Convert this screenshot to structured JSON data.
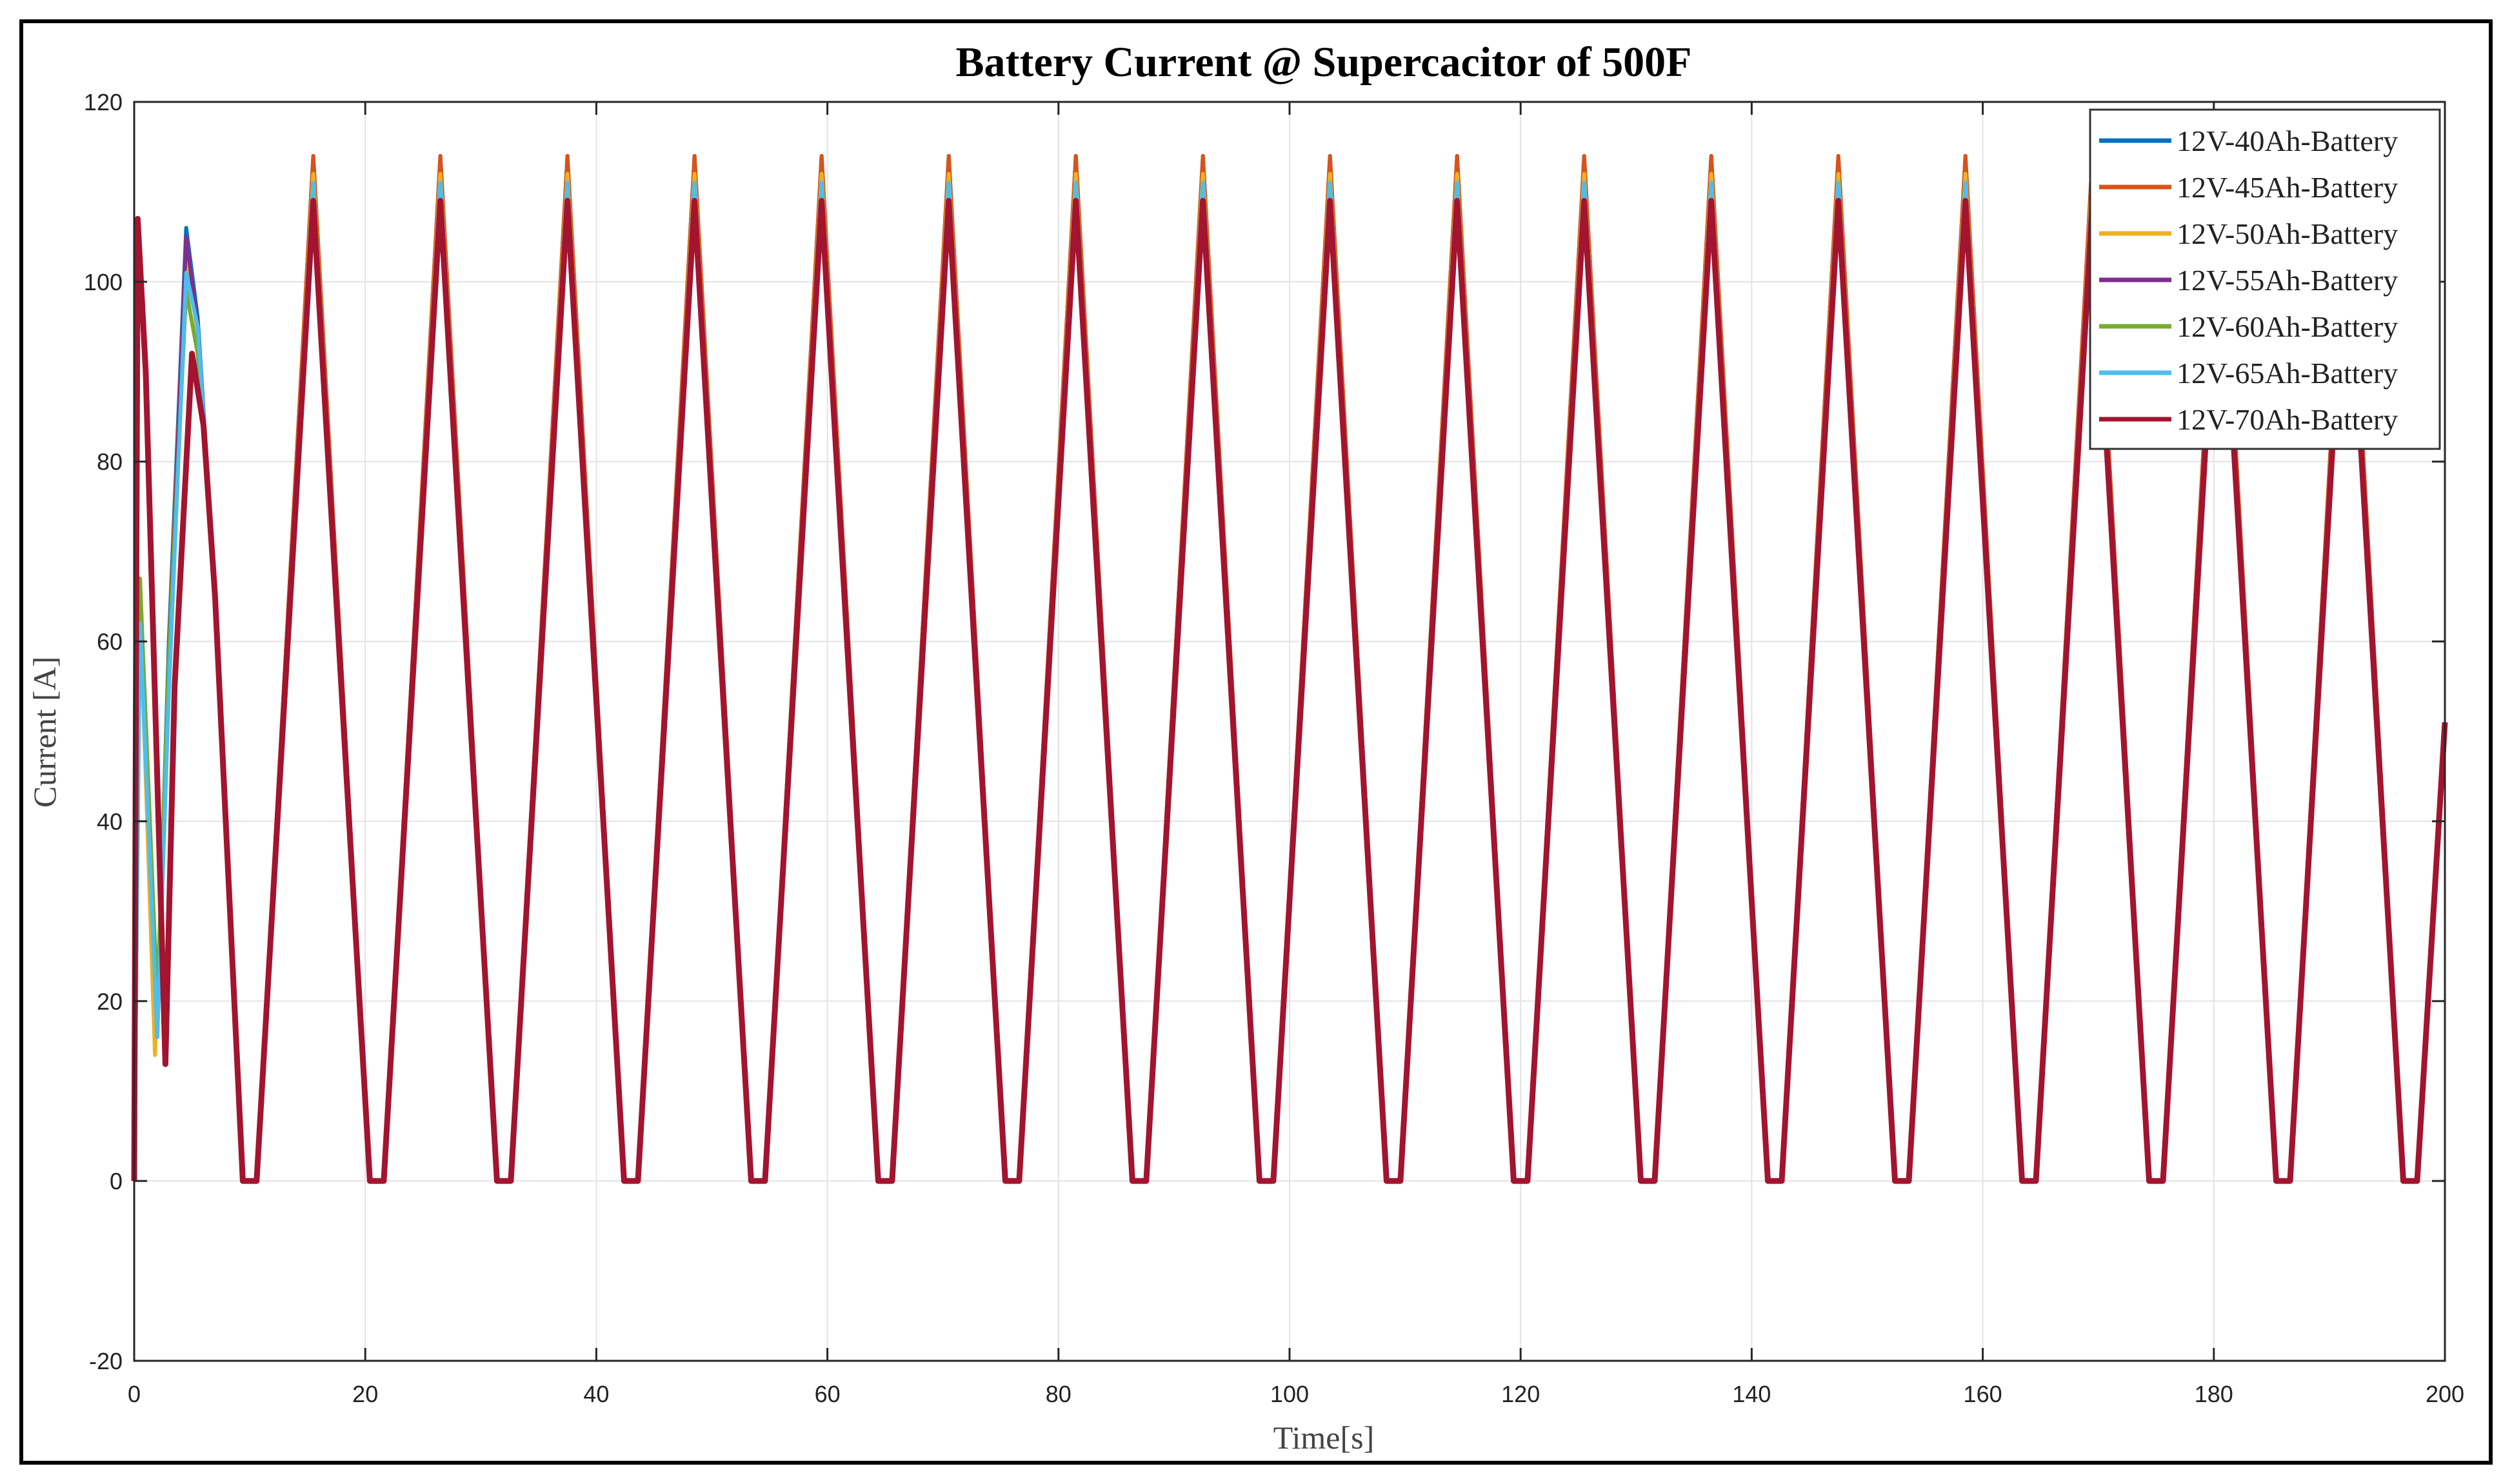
{
  "chart_data": {
    "type": "line",
    "title": "Battery Current @ Supercacitor of 500F",
    "xlabel": "Time[s]",
    "ylabel": "Current [A]",
    "xlim": [
      0,
      200
    ],
    "ylim": [
      -20,
      120
    ],
    "xticks": [
      0,
      20,
      40,
      60,
      80,
      100,
      120,
      140,
      160,
      180,
      200
    ],
    "yticks": [
      -20,
      0,
      20,
      40,
      60,
      80,
      100,
      120
    ],
    "grid": true,
    "legend_position": "top-right",
    "series": [
      {
        "name": "12V-40Ah-Battery",
        "color": "#0072BD",
        "peak": 114,
        "start": [
          [
            0,
            0
          ],
          [
            0.5,
            65
          ],
          [
            2,
            18
          ],
          [
            3,
            60
          ],
          [
            4.5,
            106
          ],
          [
            5.5,
            96
          ],
          [
            7,
            65
          ]
        ]
      },
      {
        "name": "12V-45Ah-Battery",
        "color": "#D95319",
        "peak": 114,
        "start": [
          [
            0,
            0
          ],
          [
            0.5,
            66
          ],
          [
            2,
            17
          ],
          [
            3,
            58
          ],
          [
            4.5,
            105
          ],
          [
            5.5,
            95
          ],
          [
            7,
            65
          ]
        ]
      },
      {
        "name": "12V-50Ah-Battery",
        "color": "#EDB120",
        "peak": 112,
        "start": [
          [
            0,
            0
          ],
          [
            0.5,
            64
          ],
          [
            1.8,
            14
          ],
          [
            3,
            55
          ],
          [
            4.5,
            104
          ],
          [
            5.5,
            94
          ],
          [
            7,
            65
          ]
        ]
      },
      {
        "name": "12V-55Ah-Battery",
        "color": "#7E2F8E",
        "peak": 111,
        "start": [
          [
            0,
            0
          ],
          [
            0.5,
            67
          ],
          [
            2,
            16
          ],
          [
            3,
            56
          ],
          [
            4.5,
            105
          ],
          [
            5.5,
            95
          ],
          [
            7,
            65
          ]
        ]
      },
      {
        "name": "12V-60Ah-Battery",
        "color": "#77AC30",
        "peak": 111,
        "start": [
          [
            0,
            0
          ],
          [
            0.5,
            67
          ],
          [
            2,
            20
          ],
          [
            3,
            58
          ],
          [
            4.5,
            99
          ],
          [
            5.5,
            92
          ],
          [
            7,
            65
          ]
        ]
      },
      {
        "name": "12V-65Ah-Battery",
        "color": "#4DBEEE",
        "peak": 111,
        "start": [
          [
            0,
            0
          ],
          [
            0.5,
            62
          ],
          [
            2,
            16
          ],
          [
            3,
            54
          ],
          [
            4.5,
            101
          ],
          [
            5.5,
            95
          ],
          [
            7,
            65
          ]
        ]
      },
      {
        "name": "12V-70Ah-Battery",
        "color": "#A2142F",
        "peak": 109,
        "start": [
          [
            0,
            0
          ],
          [
            0.3,
            107
          ],
          [
            1,
            90
          ],
          [
            2.7,
            13
          ],
          [
            3.5,
            55
          ],
          [
            5,
            92
          ],
          [
            6,
            84
          ],
          [
            7,
            65
          ]
        ]
      }
    ],
    "cycle": {
      "period_s": 11,
      "first_peak_s": 15.5,
      "trough_value": 0,
      "trough_width_s": 1.2,
      "end_value": 51
    }
  }
}
